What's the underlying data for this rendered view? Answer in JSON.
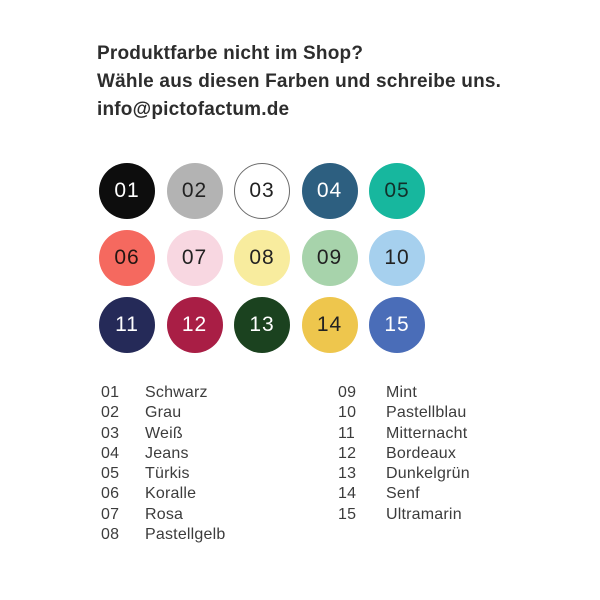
{
  "header": {
    "line1": "Produktfarbe nicht im Shop?",
    "line2": "Wähle aus diesen Farben und schreibe uns.",
    "line3": "info@pictofactum.de"
  },
  "swatches": [
    {
      "number": "01",
      "name": "Schwarz",
      "color": "#0d0d0d",
      "text_color": "#ffffff"
    },
    {
      "number": "02",
      "name": "Grau",
      "color": "#b3b3b3",
      "text_color": "#222222"
    },
    {
      "number": "03",
      "name": "Weiß",
      "color": "#ffffff",
      "text_color": "#222222",
      "border_color": "#6b6b6b"
    },
    {
      "number": "04",
      "name": "Jeans",
      "color": "#2d5f80",
      "text_color": "#ffffff"
    },
    {
      "number": "05",
      "name": "Türkis",
      "color": "#17b79e",
      "text_color": "#12302a"
    },
    {
      "number": "06",
      "name": "Koralle",
      "color": "#f5695f",
      "text_color": "#231512"
    },
    {
      "number": "07",
      "name": "Rosa",
      "color": "#f8d7e1",
      "text_color": "#222222"
    },
    {
      "number": "08",
      "name": "Pastellgelb",
      "color": "#f8ec9e",
      "text_color": "#222222"
    },
    {
      "number": "09",
      "name": "Mint",
      "color": "#a7d3ab",
      "text_color": "#222222"
    },
    {
      "number": "10",
      "name": "Pastellblau",
      "color": "#a6d0ee",
      "text_color": "#222222"
    },
    {
      "number": "11",
      "name": "Mitternacht",
      "color": "#252a58",
      "text_color": "#ffffff"
    },
    {
      "number": "12",
      "name": "Bordeaux",
      "color": "#a91e45",
      "text_color": "#ffffff"
    },
    {
      "number": "13",
      "name": "Dunkelgrün",
      "color": "#1b421f",
      "text_color": "#ffffff"
    },
    {
      "number": "14",
      "name": "Senf",
      "color": "#eec64d",
      "text_color": "#222222"
    },
    {
      "number": "15",
      "name": "Ultramarin",
      "color": "#4a6db8",
      "text_color": "#ffffff"
    }
  ],
  "legend": {
    "left_numbers": [
      "01",
      "02",
      "03",
      "04",
      "05",
      "06",
      "07",
      "08"
    ],
    "right_numbers": [
      "09",
      "10",
      "11",
      "12",
      "13",
      "14",
      "15"
    ]
  }
}
